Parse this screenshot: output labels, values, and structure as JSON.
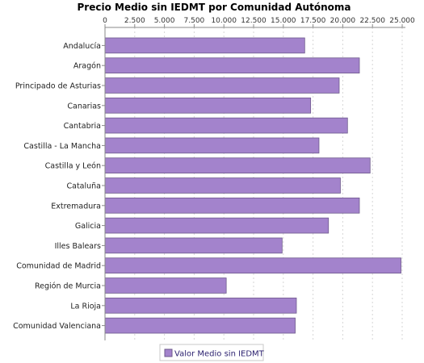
{
  "chart_data": {
    "type": "bar",
    "orientation": "horizontal",
    "title": "Precio Medio sin IEDMT por Comunidad Autónoma",
    "categories": [
      "Andalucía",
      "Aragón",
      "Principado de Asturias",
      "Canarias",
      "Cantabria",
      "Castilla - La Mancha",
      "Castilla y León",
      "Cataluña",
      "Extremadura",
      "Galicia",
      "Illes Balears",
      "Comunidad de Madrid",
      "Región de Murcia",
      "La Rioja",
      "Comunidad Valenciana"
    ],
    "series": [
      {
        "name": "Valor Medio sin IEDMT",
        "values": [
          16800,
          21400,
          19700,
          17300,
          20400,
          18000,
          22300,
          19800,
          21400,
          18800,
          14900,
          24900,
          10200,
          16100,
          16000
        ]
      }
    ],
    "xlim": [
      0,
      25000
    ],
    "ticks": [
      "0",
      "2.500",
      "5.000",
      "7.500",
      "10.000",
      "12.500",
      "15.000",
      "17.500",
      "20.000",
      "22.500",
      "25.000"
    ],
    "tick_values": [
      0,
      2500,
      5000,
      7500,
      10000,
      12500,
      15000,
      17500,
      20000,
      22500,
      25000
    ],
    "grid": true,
    "legend_position": "bottom",
    "colors": {
      "bar_fill": "#a383cc",
      "bar_stroke": "#6e5a8c",
      "grid": "#d6d6d6",
      "axis": "#888888",
      "legend_text": "#2a1f6e"
    }
  }
}
